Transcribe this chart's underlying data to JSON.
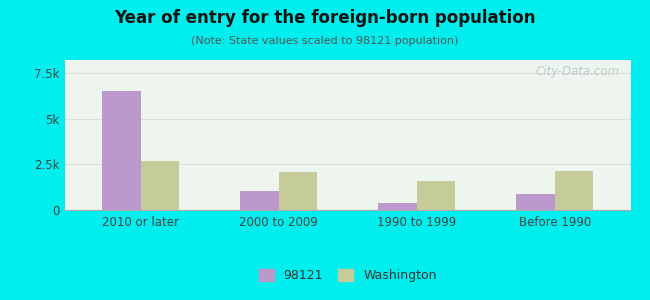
{
  "title": "Year of entry for the foreign-born population",
  "subtitle": "(Note: State values scaled to 98121 population)",
  "categories": [
    "2010 or later",
    "2000 to 2009",
    "1990 to 1999",
    "Before 1990"
  ],
  "values_98121": [
    6500,
    1050,
    380,
    850
  ],
  "values_washington": [
    2700,
    2100,
    1600,
    2150
  ],
  "color_98121": "#bb99cc",
  "color_washington": "#c5cc99",
  "background_outer": "#00eeee",
  "background_inner": "#eef5ee",
  "ylim": [
    0,
    8200
  ],
  "yticks": [
    0,
    2500,
    5000,
    7500
  ],
  "legend_label_98121": "98121",
  "legend_label_washington": "Washington",
  "bar_width": 0.28,
  "watermark": "City-Data.com"
}
